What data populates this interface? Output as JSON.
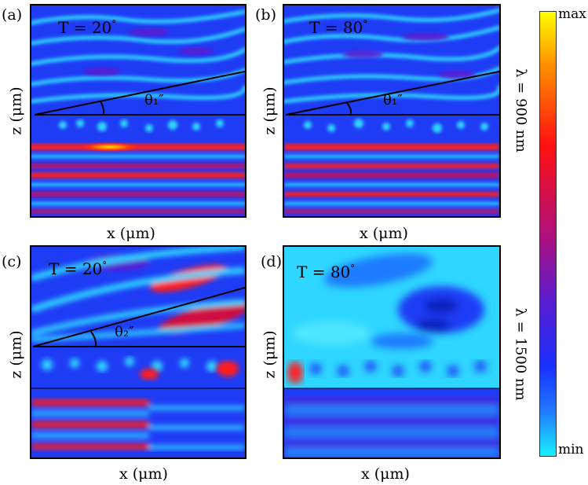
{
  "panels": [
    {
      "id": "a",
      "label": "(a)",
      "temperature_text": "T = 20",
      "degree": "°",
      "angle_label": "θ₁″",
      "xlabel": "x (μm)",
      "ylabel": "z (μm)"
    },
    {
      "id": "b",
      "label": "(b)",
      "temperature_text": "T = 80",
      "degree": "°",
      "angle_label": "θ₁″",
      "xlabel": "x (μm)",
      "ylabel": "z (μm)"
    },
    {
      "id": "c",
      "label": "(c)",
      "temperature_text": "T = 20",
      "degree": "°",
      "angle_label": "θ₂″",
      "xlabel": "x (μm)",
      "ylabel": "z (μm)"
    },
    {
      "id": "d",
      "label": "(d)",
      "temperature_text": "T = 80",
      "degree": "°",
      "angle_label": "",
      "xlabel": "x (μm)",
      "ylabel": "z (μm)"
    }
  ],
  "wavelength_top": "λ = 900 nm",
  "wavelength_bottom": "λ = 1500 nm",
  "colorbar": {
    "max_label": "max",
    "min_label": "min"
  },
  "colors": {
    "bg": "#1f3cf5",
    "light": "#2fd6ff",
    "mid": "#5a1cd0",
    "hot": "#ff1a1a",
    "peak": "#ffd000"
  }
}
